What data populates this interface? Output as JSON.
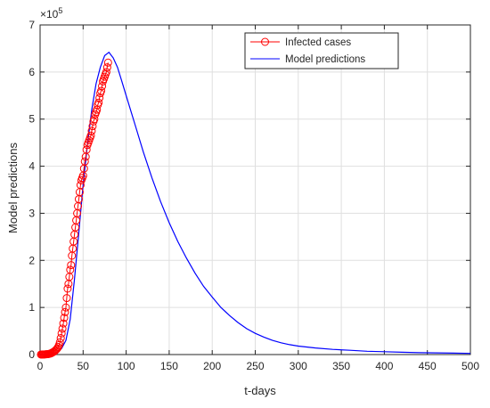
{
  "chart_data": {
    "type": "line",
    "title": "",
    "xlabel": "t-days",
    "ylabel": "Model predictions",
    "xlim": [
      0,
      500
    ],
    "ylim": [
      0,
      7
    ],
    "y_multiplier_label": "×10",
    "y_multiplier_exponent": "5",
    "x_ticks": [
      0,
      50,
      100,
      150,
      200,
      250,
      300,
      350,
      400,
      450,
      500
    ],
    "y_ticks": [
      0,
      1,
      2,
      3,
      4,
      5,
      6,
      7
    ],
    "grid": true,
    "legend_position": "top-right",
    "series": [
      {
        "name": "Infected cases",
        "color": "#ff0000",
        "style": "line-with-circle-markers",
        "x": [
          1,
          2,
          3,
          4,
          5,
          6,
          7,
          8,
          9,
          10,
          11,
          12,
          13,
          14,
          15,
          16,
          17,
          18,
          19,
          20,
          21,
          22,
          23,
          24,
          25,
          26,
          27,
          28,
          29,
          30,
          31,
          32,
          33,
          34,
          35,
          36,
          37,
          38,
          39,
          40,
          41,
          42,
          43,
          44,
          45,
          46,
          47,
          48,
          49,
          50,
          51,
          52,
          53,
          54,
          55,
          56,
          57,
          58,
          59,
          60,
          61,
          62,
          63,
          64,
          65,
          66,
          67,
          68,
          69,
          70,
          71,
          72,
          73,
          74,
          75,
          76,
          77,
          78,
          79
        ],
        "y": [
          0.001,
          0.001,
          0.002,
          0.002,
          0.003,
          0.004,
          0.006,
          0.008,
          0.01,
          0.013,
          0.017,
          0.022,
          0.03,
          0.04,
          0.05,
          0.06,
          0.075,
          0.09,
          0.11,
          0.13,
          0.16,
          0.2,
          0.26,
          0.35,
          0.45,
          0.55,
          0.66,
          0.78,
          0.9,
          1.0,
          1.2,
          1.4,
          1.5,
          1.65,
          1.8,
          1.9,
          2.1,
          2.25,
          2.4,
          2.55,
          2.7,
          2.85,
          3.0,
          3.15,
          3.3,
          3.45,
          3.6,
          3.7,
          3.75,
          3.8,
          3.95,
          4.1,
          4.2,
          4.35,
          4.45,
          4.5,
          4.55,
          4.6,
          4.65,
          4.75,
          4.85,
          4.95,
          5.0,
          5.1,
          5.15,
          5.2,
          5.3,
          5.35,
          5.45,
          5.55,
          5.6,
          5.7,
          5.8,
          5.85,
          5.9,
          5.95,
          6.0,
          6.1,
          6.2
        ]
      },
      {
        "name": "Model predictions",
        "color": "#0000ff",
        "style": "line",
        "x": [
          0,
          5,
          10,
          15,
          20,
          25,
          30,
          35,
          40,
          45,
          50,
          55,
          60,
          65,
          70,
          75,
          80,
          85,
          90,
          95,
          100,
          110,
          120,
          130,
          140,
          150,
          160,
          170,
          180,
          190,
          200,
          210,
          220,
          230,
          240,
          250,
          260,
          270,
          280,
          290,
          300,
          320,
          340,
          360,
          380,
          400,
          420,
          440,
          460,
          480,
          500
        ],
        "y": [
          0.002,
          0.004,
          0.008,
          0.02,
          0.05,
          0.13,
          0.3,
          0.75,
          1.6,
          2.6,
          3.6,
          4.45,
          5.2,
          5.75,
          6.1,
          6.35,
          6.42,
          6.3,
          6.1,
          5.8,
          5.5,
          4.9,
          4.3,
          3.75,
          3.25,
          2.8,
          2.4,
          2.05,
          1.73,
          1.45,
          1.22,
          1.0,
          0.83,
          0.68,
          0.55,
          0.45,
          0.37,
          0.3,
          0.25,
          0.21,
          0.18,
          0.14,
          0.11,
          0.09,
          0.07,
          0.06,
          0.05,
          0.04,
          0.035,
          0.03,
          0.025
        ]
      }
    ]
  }
}
